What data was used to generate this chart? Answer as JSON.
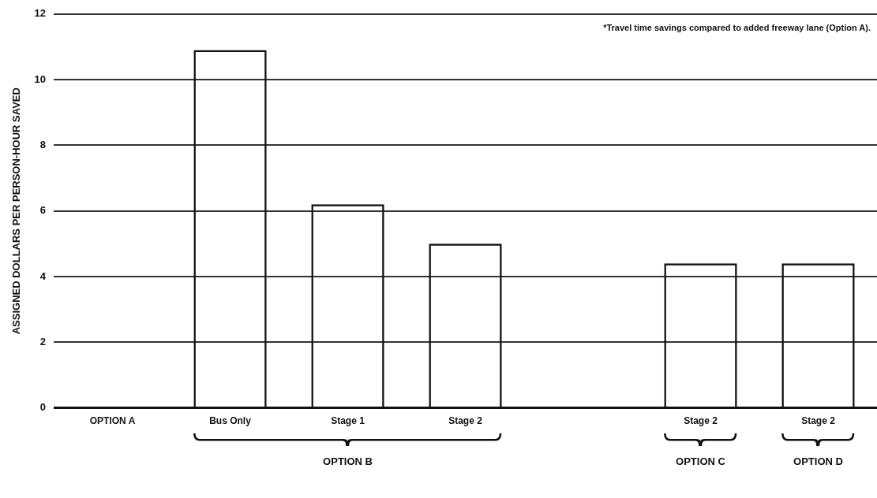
{
  "chart_data": {
    "type": "bar",
    "ylabel": "ASSIGNED DOLLARS PER PERSON-HOUR SAVED",
    "categories": [
      "OPTION A",
      "Bus Only",
      "Stage 1",
      "Stage 2",
      null,
      "Stage 2",
      "Stage 2"
    ],
    "values": [
      0,
      10.9,
      6.2,
      5.0,
      null,
      4.4,
      4.4
    ],
    "color": "#111111",
    "ylim": [
      0,
      12
    ],
    "yticks": [
      0,
      2,
      4,
      6,
      8,
      10,
      12
    ],
    "grid": "y",
    "legend": false,
    "annotations": [
      "*Travel time savings compared to added freeway lane (Option A).",
      "OPTION B",
      "OPTION C",
      "OPTION D"
    ]
  }
}
